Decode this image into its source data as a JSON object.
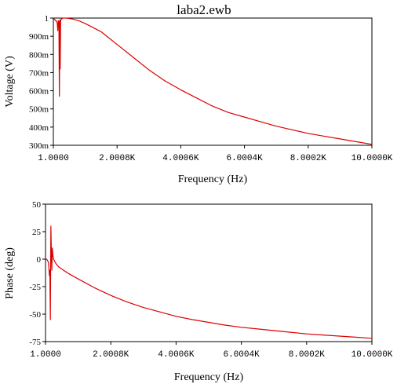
{
  "title": "laba2.ewb",
  "colors": {
    "trace": "#dd0000",
    "axis": "#000000",
    "background": "#ffffff"
  },
  "chart_data": [
    {
      "type": "line",
      "name": "magnitude",
      "xlabel": "Frequency (Hz)",
      "ylabel": "Voltage (V)",
      "xlim": [
        1,
        10000
      ],
      "ylim": [
        0.3,
        1.0
      ],
      "grid": false,
      "x_ticks": [
        1,
        2000.8,
        4000.6,
        6000.4,
        8000.2,
        10000
      ],
      "x_tick_labels": [
        "1.0000",
        "2.0008K",
        "4.0006K",
        "6.0004K",
        "8.0002K",
        "10.0000K"
      ],
      "y_ticks": [
        0.3,
        0.4,
        0.5,
        0.6,
        0.7,
        0.8,
        0.9,
        1.0
      ],
      "y_tick_labels": [
        "300m",
        "400m",
        "500m",
        "600m",
        "700m",
        "800m",
        "900m",
        "1"
      ],
      "series": [
        {
          "x": [
            1,
            25,
            50,
            75,
            100,
            125,
            140,
            155,
            165,
            175,
            190,
            205,
            215,
            230,
            260,
            300,
            400,
            600,
            800,
            1000,
            1500,
            2000,
            2500,
            3000,
            3500,
            4000,
            4500,
            5000,
            5500,
            6000,
            6500,
            7000,
            7500,
            8000,
            8500,
            9000,
            9500,
            10000
          ],
          "y": [
            0.995,
            0.995,
            0.99,
            0.985,
            0.985,
            0.97,
            0.93,
            0.985,
            0.985,
            0.98,
            0.57,
            0.99,
            0.72,
            0.99,
            0.995,
            1.0,
            1.0,
            0.995,
            0.985,
            0.97,
            0.925,
            0.855,
            0.785,
            0.715,
            0.655,
            0.605,
            0.56,
            0.515,
            0.48,
            0.455,
            0.43,
            0.405,
            0.385,
            0.365,
            0.35,
            0.335,
            0.32,
            0.305
          ]
        }
      ]
    },
    {
      "type": "line",
      "name": "phase",
      "xlabel": "Frequency (Hz)",
      "ylabel": "Phase (deg)",
      "xlim": [
        1,
        10000
      ],
      "ylim": [
        -75,
        50
      ],
      "grid": false,
      "x_ticks": [
        1,
        2000.8,
        4000.6,
        6000.4,
        8000.2,
        10000
      ],
      "x_tick_labels": [
        "1.0000",
        "2.0008K",
        "4.0006K",
        "6.0004K",
        "8.0002K",
        "10.0000K"
      ],
      "y_ticks": [
        50,
        25,
        0,
        -25,
        -50,
        -75
      ],
      "y_tick_labels": [
        "50",
        "25",
        "0",
        "-25",
        "-50",
        "-75"
      ],
      "series": [
        {
          "x": [
            1,
            30,
            60,
            90,
            105,
            120,
            135,
            150,
            165,
            180,
            195,
            210,
            230,
            250,
            280,
            320,
            400,
            500,
            700,
            1000,
            1500,
            2000,
            2500,
            3000,
            3500,
            4000,
            4500,
            5000,
            5500,
            6000,
            6500,
            7000,
            7500,
            8000,
            8500,
            9000,
            9500,
            10000
          ],
          "y": [
            0,
            0,
            -1,
            -3,
            -8,
            -15,
            -10,
            -55,
            30,
            8,
            -10,
            10,
            3,
            0,
            -2,
            -4,
            -7,
            -9,
            -13,
            -18,
            -26,
            -33,
            -39,
            -44,
            -48,
            -52,
            -55,
            -57.5,
            -60,
            -62,
            -63.5,
            -65,
            -66.5,
            -68,
            -69,
            -70,
            -71,
            -72
          ]
        }
      ]
    }
  ]
}
